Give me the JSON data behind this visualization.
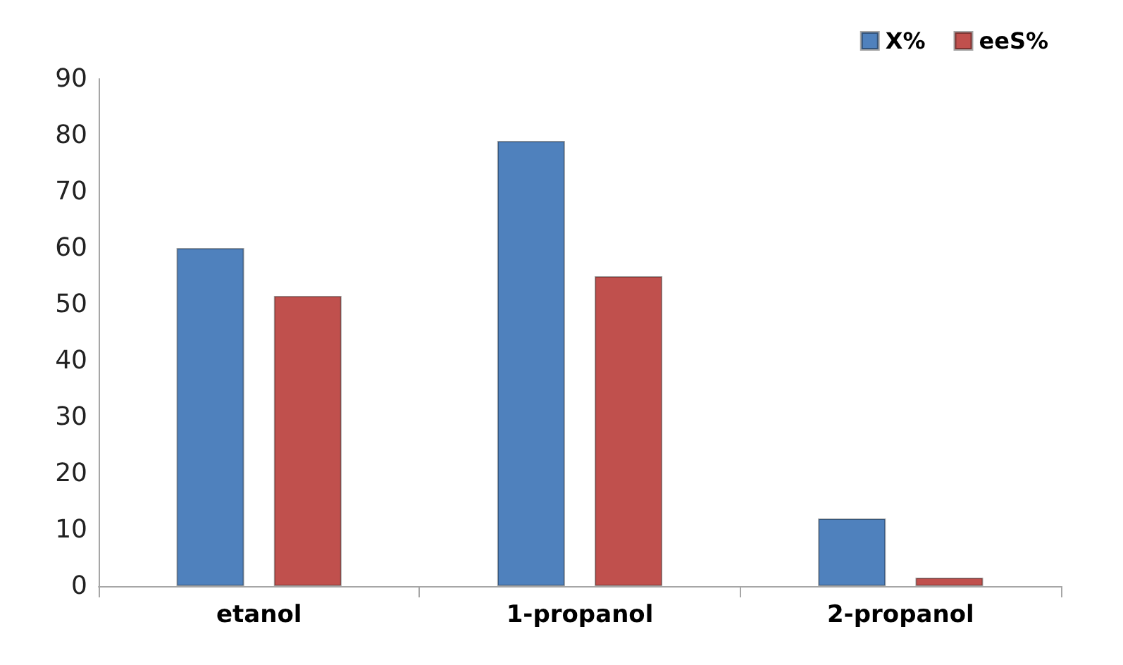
{
  "chart_data": {
    "type": "bar",
    "categories": [
      "etanol",
      "1-propanol",
      "2-propanol"
    ],
    "series": [
      {
        "name": "X%",
        "color": "#4f81bd",
        "values": [
          60,
          79,
          12
        ]
      },
      {
        "name": "eeS%",
        "color": "#c0504d",
        "values": [
          51.5,
          55,
          1.5
        ]
      }
    ],
    "ylim": [
      0,
      90
    ],
    "yticks": [
      0,
      10,
      20,
      30,
      40,
      50,
      60,
      70,
      80,
      90
    ],
    "grid": false,
    "legend": "top right"
  }
}
